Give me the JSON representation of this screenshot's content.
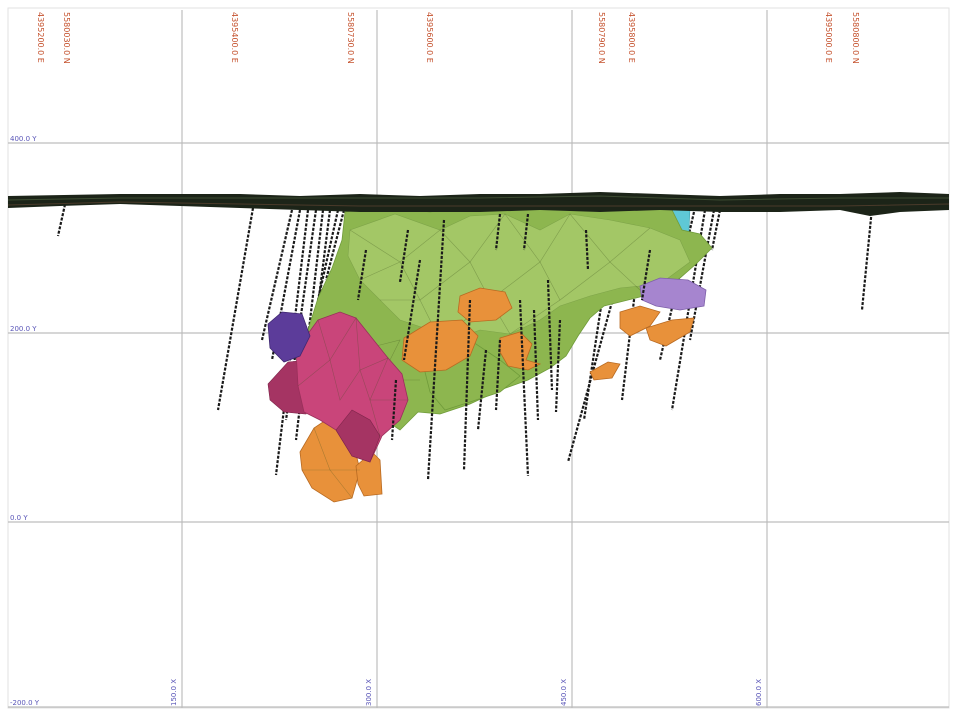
{
  "section": {
    "top_labels": [
      "4395200.0 E",
      "5580030.0 N",
      "4395400.0 E",
      "5580730.0 N",
      "4395600.0 E",
      "5580790.0 N",
      "4395800.0 E",
      "4395000.0 E",
      "5580800.0 N"
    ],
    "elevation_labels": [
      "400.0 Y",
      "200.0 Y",
      "0.0 Y",
      "-200.0 Y"
    ],
    "bottom_labels": [
      "150.0 X",
      "300.0 X",
      "450.0 X",
      "600.0 X"
    ]
  },
  "colors": {
    "grid": "#bdbdbd",
    "coordinate_text": "#c5532f",
    "elevation_text": "#5a56b8",
    "topography": "#1c2418",
    "ore_green": "#8db64f",
    "ore_orange": "#e8913a",
    "ore_pink": "#c9457a",
    "ore_purple": "#5c3c9a",
    "ore_lilac": "#a685cf",
    "ore_cyan": "#5fc8d6",
    "drillhole": "#1a1a1a"
  }
}
